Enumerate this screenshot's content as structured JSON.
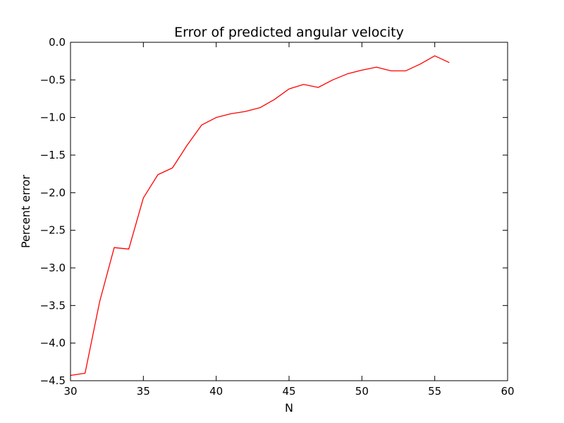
{
  "chart_data": {
    "type": "line",
    "title": "Error of predicted angular velocity",
    "xlabel": "N",
    "ylabel": "Percent error",
    "xlim": [
      30,
      60
    ],
    "ylim": [
      -4.5,
      0.0
    ],
    "xticks": [
      "30",
      "35",
      "40",
      "45",
      "50",
      "55",
      "60"
    ],
    "yticks": [
      "0.0",
      "−0.5",
      "−1.0",
      "−1.5",
      "−2.0",
      "−2.5",
      "−3.0",
      "−3.5",
      "−4.0",
      "−4.5"
    ],
    "xtick_values": [
      30,
      35,
      40,
      45,
      50,
      55,
      60
    ],
    "ytick_values": [
      0.0,
      -0.5,
      -1.0,
      -1.5,
      -2.0,
      -2.5,
      -3.0,
      -3.5,
      -4.0,
      -4.5
    ],
    "grid": false,
    "series": [
      {
        "color": "#ff0000",
        "x": [
          30,
          31,
          32,
          33,
          34,
          35,
          36,
          37,
          38,
          39,
          40,
          41,
          42,
          43,
          44,
          45,
          46,
          47,
          48,
          49,
          50,
          51,
          52,
          53,
          54,
          55,
          56
        ],
        "y": [
          -4.43,
          -4.4,
          -3.45,
          -2.73,
          -2.75,
          -2.07,
          -1.76,
          -1.67,
          -1.37,
          -1.1,
          -1.0,
          -0.95,
          -0.92,
          -0.87,
          -0.76,
          -0.62,
          -0.56,
          -0.6,
          -0.5,
          -0.42,
          -0.37,
          -0.33,
          -0.38,
          -0.38,
          -0.29,
          -0.18,
          -0.27
        ]
      }
    ]
  }
}
